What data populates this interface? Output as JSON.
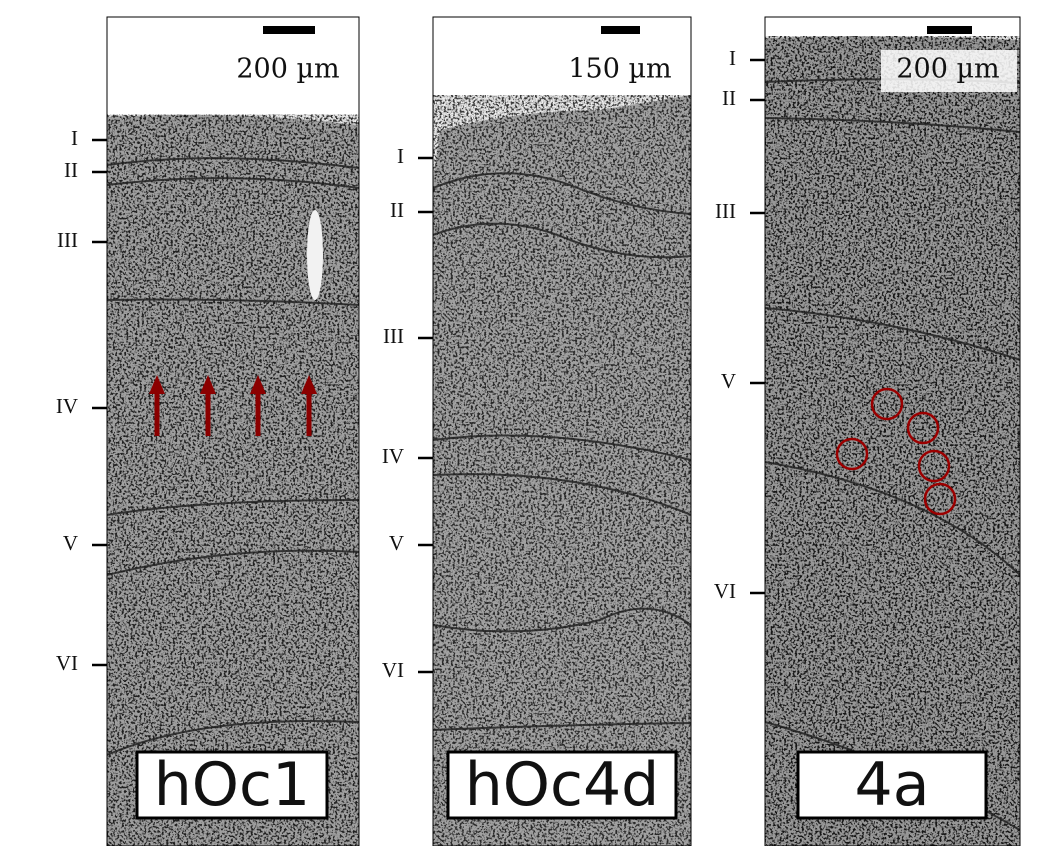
{
  "panels": [
    {
      "label": "hOc1",
      "scale": "200 µm",
      "layers": [
        "I",
        "II",
        "III",
        "IV",
        "V",
        "VI"
      ]
    },
    {
      "label": "hOc4d",
      "scale": "150 µm",
      "layers": [
        "I",
        "II",
        "III",
        "IV",
        "V",
        "VI"
      ]
    },
    {
      "label": "4a",
      "scale": "200 µm",
      "layers": [
        "I",
        "II",
        "III",
        "V",
        "VI"
      ]
    }
  ]
}
